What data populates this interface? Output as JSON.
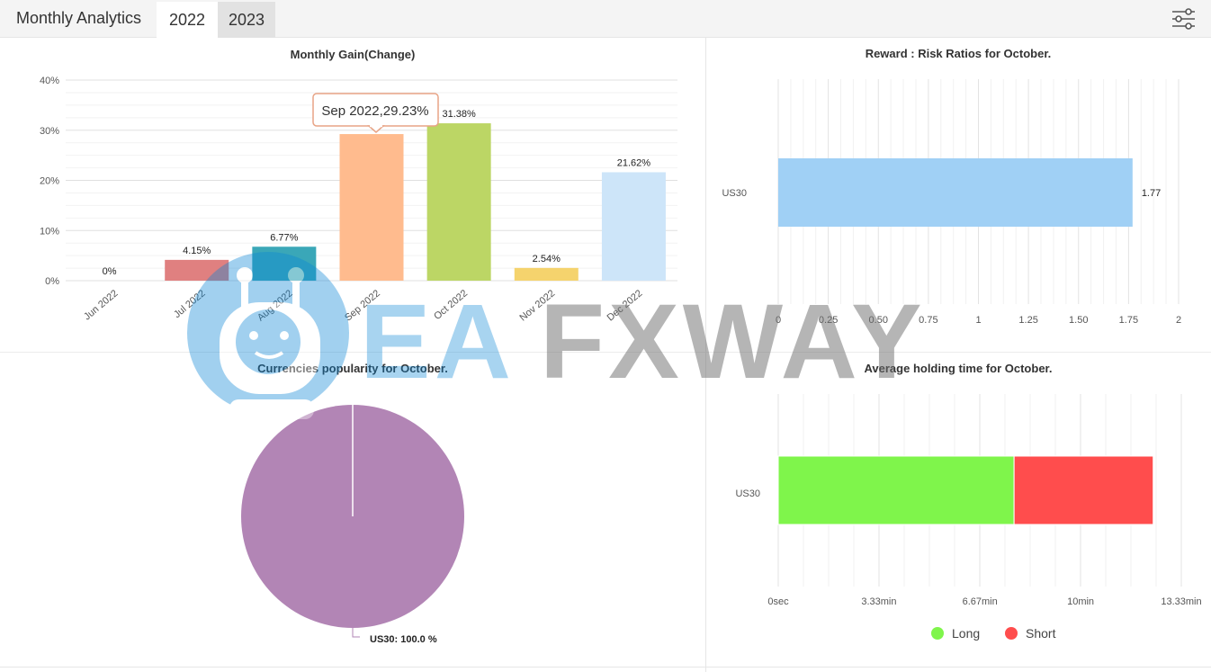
{
  "header": {
    "title": "Monthly Analytics",
    "tabs": [
      {
        "label": "2022",
        "active": true
      },
      {
        "label": "2023",
        "active": false
      }
    ],
    "settings_icon": "sliders-icon"
  },
  "watermark": {
    "text_part1": "EA",
    "text_part2": "FXWAY",
    "logo_icon": "robot-icon"
  },
  "charts": {
    "monthly_gain": {
      "type": "bar",
      "title": "Monthly Gain(Change)",
      "categories": [
        "Jun 2022",
        "Jul 2022",
        "Aug 2022",
        "Sep 2022",
        "Oct 2022",
        "Nov 2022",
        "Dec 2022"
      ],
      "values": [
        0,
        4.15,
        6.77,
        29.23,
        31.38,
        2.54,
        21.62
      ],
      "value_labels": [
        "0%",
        "4.15%",
        "6.77%",
        "",
        "31.38%",
        "2.54%",
        "21.62%"
      ],
      "colors": [
        "#cccccc",
        "#e08080",
        "#3aa7b8",
        "#ffbb8e",
        "#bcd665",
        "#f5d36d",
        "#cde5f9"
      ],
      "ylim": [
        0,
        40
      ],
      "yticks": [
        "0%",
        "10%",
        "20%",
        "30%",
        "40%"
      ],
      "tooltip": "Sep 2022,29.23%"
    },
    "reward_risk": {
      "type": "bar",
      "title": "Reward : Risk Ratios for October.",
      "categories": [
        "US30"
      ],
      "values": [
        1.77
      ],
      "value_labels": [
        "1.77"
      ],
      "xlim": [
        0,
        2
      ],
      "xticks": [
        "0",
        "0.25",
        "0.50",
        "0.75",
        "1",
        "1.25",
        "1.50",
        "1.75",
        "2"
      ],
      "color": "#a0d0f5"
    },
    "currencies": {
      "type": "pie",
      "title": "Currencies popularity for October.",
      "slices": [
        {
          "name": "US30",
          "value": 100.0,
          "color": "#b285b5"
        }
      ],
      "label": "US30: 100.0 %"
    },
    "holding_time": {
      "type": "bar",
      "title": "Average holding time for October.",
      "categories": [
        "US30"
      ],
      "series": [
        {
          "name": "Long",
          "values": [
            7.8
          ],
          "color": "#7ff54b"
        },
        {
          "name": "Short",
          "values": [
            4.6
          ],
          "color": "#ff4d4d"
        }
      ],
      "xlim": [
        0,
        13.33
      ],
      "xtick_values": [
        0,
        3.33,
        6.67,
        10,
        13.33
      ],
      "xticks": [
        "0sec",
        "3.33min",
        "6.67min",
        "10min",
        "13.33min"
      ],
      "legend": [
        "Long",
        "Short"
      ]
    }
  }
}
